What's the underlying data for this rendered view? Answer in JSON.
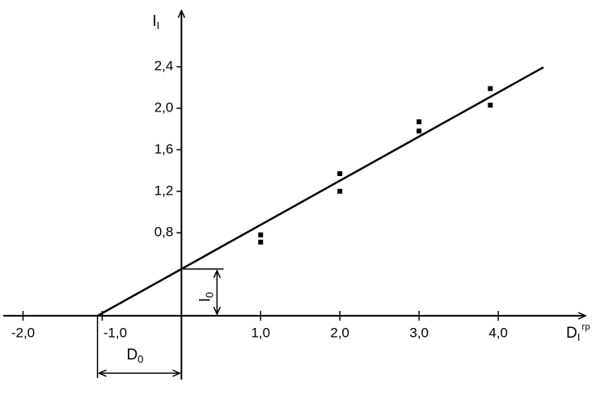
{
  "chart_data": {
    "type": "scatter",
    "x_label": {
      "main": "D",
      "sub": "I",
      "sup": "гр"
    },
    "y_label": {
      "main": "I",
      "sub": "I"
    },
    "annotations": [
      {
        "main": "I",
        "sub": "0"
      },
      {
        "main": "D",
        "sub": "0"
      }
    ],
    "series": [
      {
        "color": "#000000",
        "x": [
          1.0,
          1.0,
          2.0,
          2.0,
          3.0,
          3.0,
          3.9,
          3.9
        ],
        "values": [
          0.78,
          0.71,
          1.37,
          1.2,
          1.87,
          1.78,
          2.19,
          2.03
        ]
      },
      {
        "color": "#000000",
        "x": [
          -1.06,
          4.57
        ],
        "values": [
          0,
          2.395
        ]
      }
    ],
    "xlim": [
      -2.25,
      5.0
    ],
    "ylim": [
      -0.6,
      2.88
    ],
    "xticks": [
      {
        "value": -2,
        "label": "-2,0"
      },
      {
        "value": -1,
        "label": "-1,0"
      },
      {
        "value": 1,
        "label": "1,0"
      },
      {
        "value": 2,
        "label": "2,0"
      },
      {
        "value": 3,
        "label": "3,0"
      },
      {
        "value": 4,
        "label": "4,0"
      }
    ],
    "yticks": [
      {
        "value": 0.8,
        "label": "0,8"
      },
      {
        "value": 1.2,
        "label": "1,2"
      },
      {
        "value": 1.6,
        "label": "1,6"
      },
      {
        "value": 2.0,
        "label": "2,0"
      },
      {
        "value": 2.4,
        "label": "2,4"
      }
    ]
  }
}
